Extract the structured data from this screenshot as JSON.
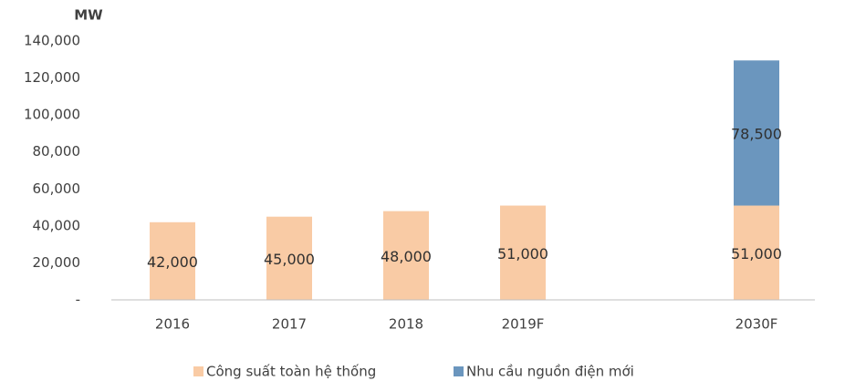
{
  "chart_data": {
    "type": "stacked_bar",
    "y_label": "MW",
    "categories": [
      "2016",
      "2017",
      "2018",
      "2019F",
      null,
      "2030F"
    ],
    "series": [
      {
        "name": "Công suất toàn hệ thống",
        "color": "#f9cba5",
        "values": [
          42000,
          45000,
          48000,
          51000,
          null,
          51000
        ],
        "value_labels": [
          "42,000",
          "45,000",
          "48,000",
          "51,000",
          null,
          "51,000"
        ]
      },
      {
        "name": "Nhu cầu nguồn điện mới",
        "color": "#6b96be",
        "values": [
          null,
          null,
          null,
          null,
          null,
          78500
        ],
        "value_labels": [
          null,
          null,
          null,
          null,
          null,
          "78,500"
        ]
      }
    ],
    "ylim": [
      0,
      140000
    ],
    "yticks": [
      {
        "value": 0,
        "label": "-"
      },
      {
        "value": 20000,
        "label": "20,000"
      },
      {
        "value": 40000,
        "label": "40,000"
      },
      {
        "value": 60000,
        "label": "60,000"
      },
      {
        "value": 80000,
        "label": "80,000"
      },
      {
        "value": 100000,
        "label": "100,000"
      },
      {
        "value": 120000,
        "label": "120,000"
      },
      {
        "value": 140000,
        "label": "140,000"
      }
    ],
    "grid": false,
    "legend": "bottom"
  }
}
